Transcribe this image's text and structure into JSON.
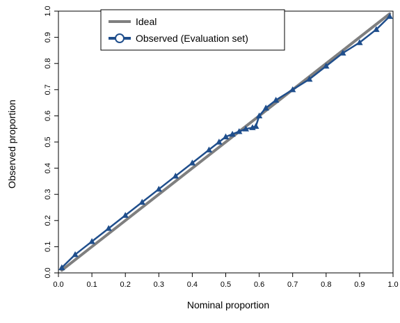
{
  "chart_data": {
    "type": "line",
    "title": "",
    "xlabel": "Nominal proportion",
    "ylabel": "Observed proportion",
    "xlim": [
      0,
      1
    ],
    "ylim": [
      0,
      1
    ],
    "xticks": [
      "0.0",
      "0.1",
      "0.2",
      "0.3",
      "0.4",
      "0.5",
      "0.6",
      "0.7",
      "0.8",
      "0.9",
      "1.0"
    ],
    "yticks": [
      "0.0",
      "0.1",
      "0.2",
      "0.3",
      "0.4",
      "0.5",
      "0.6",
      "0.7",
      "0.8",
      "0.9",
      "1.0"
    ],
    "grid": false,
    "legend_position": "top-left",
    "series": [
      {
        "name": "Ideal",
        "color": "#7f7f7f",
        "x": [
          0.01,
          0.99
        ],
        "y": [
          0.01,
          0.99
        ]
      },
      {
        "name": "Observed (Evaluation set)",
        "color": "#1f4e8c",
        "marker": "triangle",
        "x": [
          0.01,
          0.05,
          0.1,
          0.15,
          0.2,
          0.25,
          0.3,
          0.35,
          0.4,
          0.45,
          0.48,
          0.5,
          0.52,
          0.54,
          0.56,
          0.58,
          0.59,
          0.6,
          0.62,
          0.65,
          0.7,
          0.75,
          0.8,
          0.85,
          0.9,
          0.95,
          0.99
        ],
        "y": [
          0.02,
          0.07,
          0.12,
          0.17,
          0.22,
          0.27,
          0.32,
          0.37,
          0.42,
          0.47,
          0.5,
          0.52,
          0.53,
          0.54,
          0.55,
          0.555,
          0.56,
          0.6,
          0.63,
          0.66,
          0.7,
          0.74,
          0.79,
          0.84,
          0.88,
          0.93,
          0.98
        ]
      }
    ]
  }
}
